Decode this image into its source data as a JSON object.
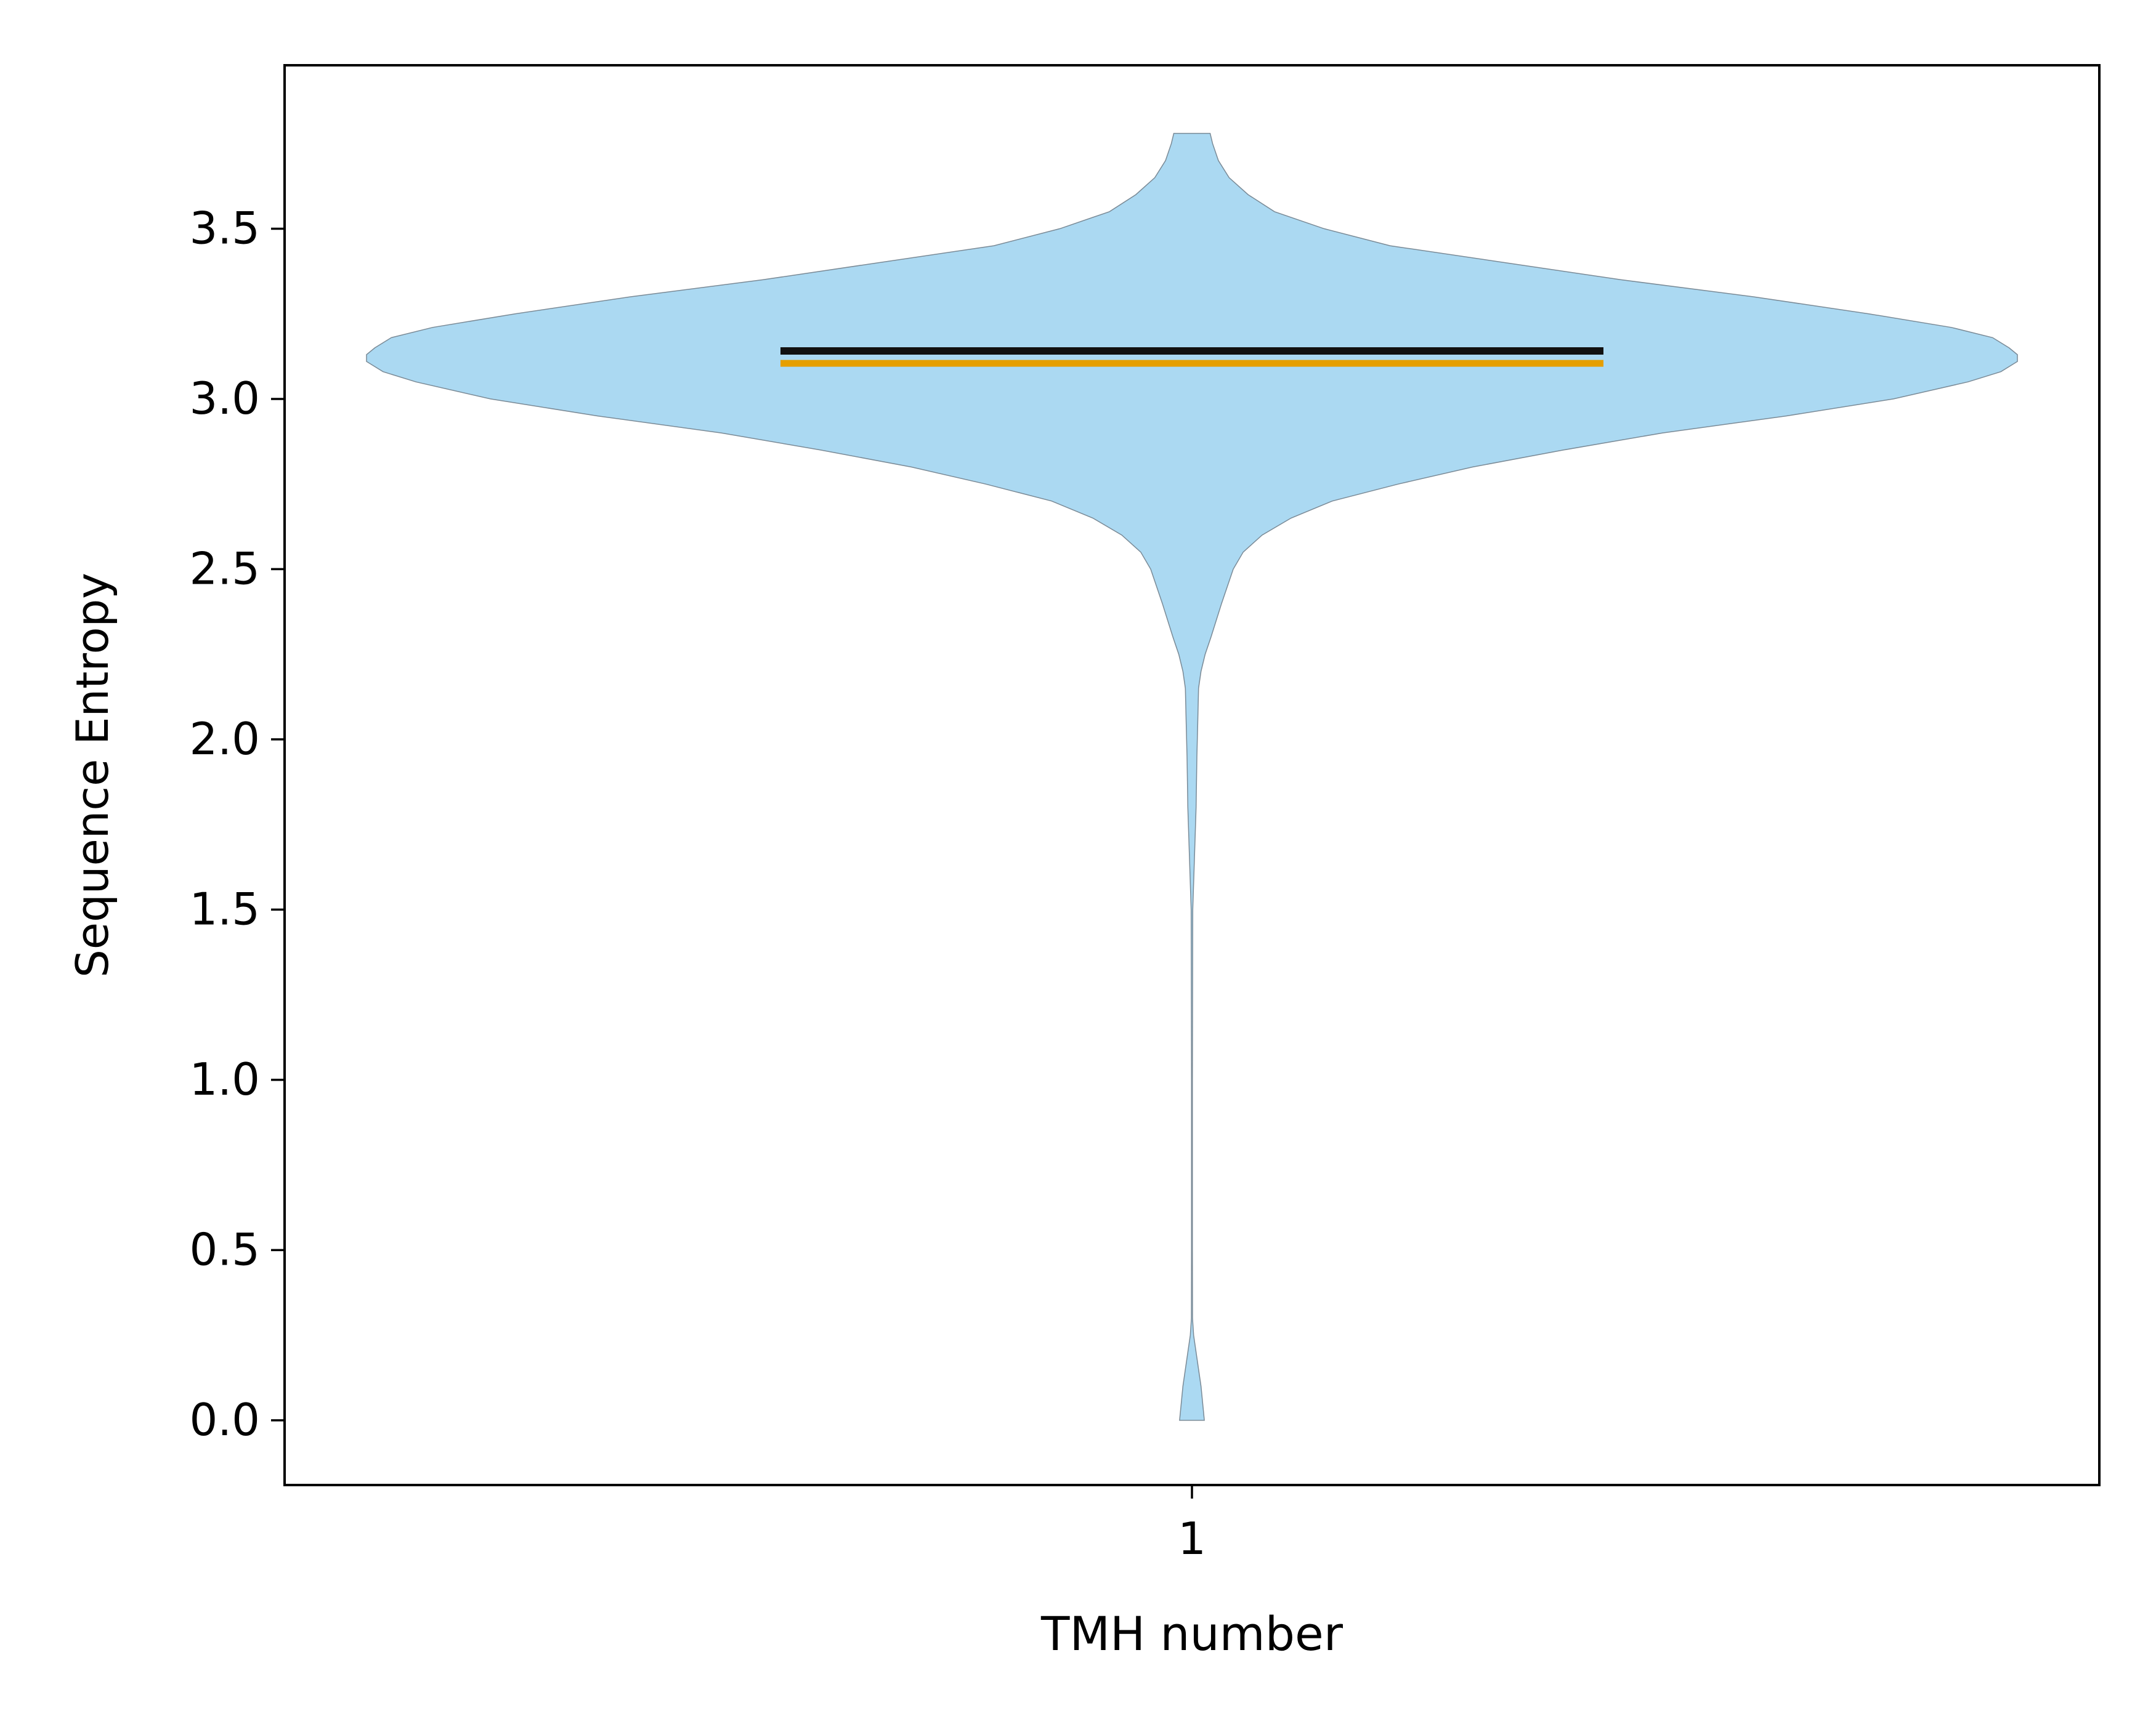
{
  "chart_data": {
    "type": "violin",
    "title": "",
    "xlabel": "TMH number",
    "ylabel": "Sequence Entropy",
    "x_ticks": [
      "1"
    ],
    "y_ticks": [
      "0.0",
      "0.5",
      "1.0",
      "1.5",
      "2.0",
      "2.5",
      "3.0",
      "3.5"
    ],
    "ylim": [
      -0.19,
      3.98
    ],
    "grid": false,
    "series": [
      {
        "category": "1",
        "range": [
          0.0,
          3.78
        ],
        "median": 3.13,
        "mean": 3.11,
        "density_profile": {
          "y": [
            0.0,
            0.05,
            0.1,
            0.15,
            0.2,
            0.25,
            0.3,
            0.5,
            1.0,
            1.5,
            1.65,
            1.8,
            1.95,
            2.05,
            2.15,
            2.2,
            2.25,
            2.3,
            2.4,
            2.5,
            2.55,
            2.6,
            2.65,
            2.7,
            2.75,
            2.8,
            2.85,
            2.9,
            2.95,
            3.0,
            3.05,
            3.08,
            3.11,
            3.13,
            3.15,
            3.18,
            3.21,
            3.25,
            3.3,
            3.35,
            3.4,
            3.45,
            3.5,
            3.55,
            3.6,
            3.65,
            3.7,
            3.75,
            3.78
          ],
          "relative_width": [
            0.015,
            0.013,
            0.011,
            0.008,
            0.005,
            0.002,
            0.0007,
            0.0005,
            0.0005,
            0.001,
            0.003,
            0.005,
            0.006,
            0.007,
            0.008,
            0.011,
            0.016,
            0.023,
            0.036,
            0.05,
            0.062,
            0.085,
            0.12,
            0.17,
            0.25,
            0.34,
            0.45,
            0.57,
            0.72,
            0.85,
            0.94,
            0.98,
            1.0,
            1.0,
            0.99,
            0.97,
            0.92,
            0.82,
            0.68,
            0.52,
            0.38,
            0.24,
            0.16,
            0.1,
            0.068,
            0.045,
            0.032,
            0.025,
            0.022
          ]
        }
      }
    ],
    "colors": {
      "violin_fill": "#abd9f2",
      "violin_edge": "#7a8a96",
      "median_line": "#111111",
      "mean_line": "#e69f00"
    }
  }
}
